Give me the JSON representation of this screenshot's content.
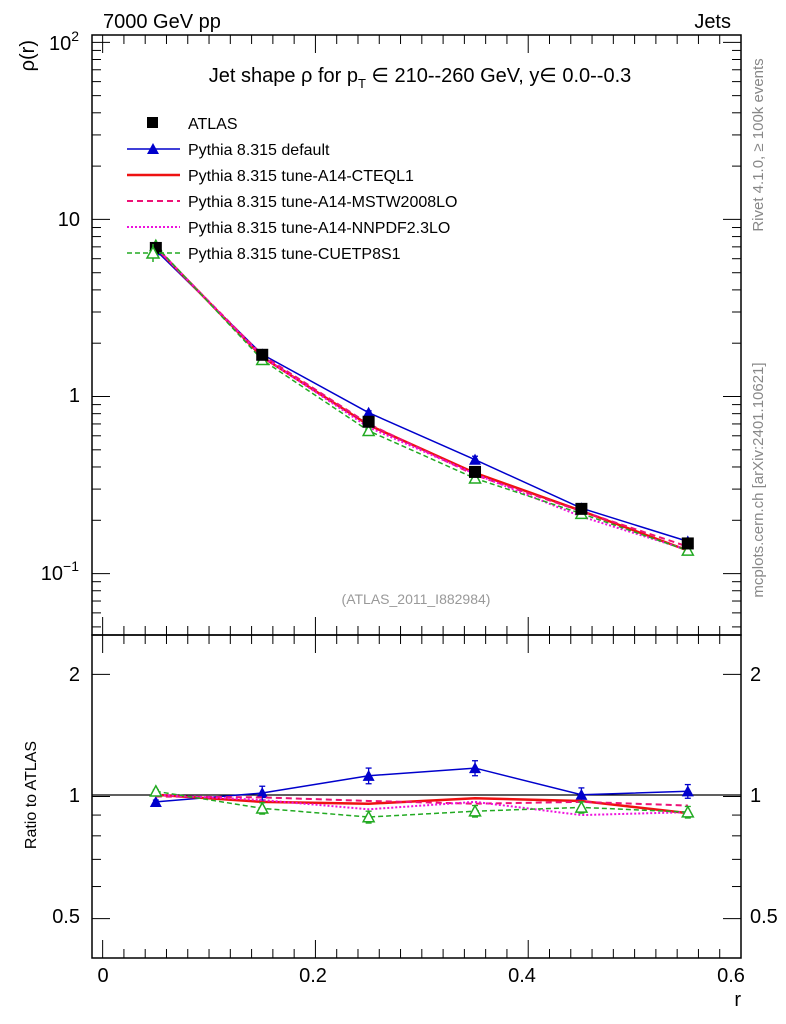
{
  "header": {
    "energy": "7000 GeV pp",
    "category": "Jets"
  },
  "side_labels": {
    "rivet": "Rivet 4.1.0, ≥ 100k events",
    "arxiv": "mcplots.cern.ch [arXiv:2401.10621]"
  },
  "chart_data": [
    {
      "type": "line",
      "panel": "main",
      "title": "Jet shape ρ for p_T ∈ 210--260 GeV, y∈ 0.0--0.3",
      "title_parts": {
        "pre": "Jet shape ρ for p",
        "sub": "T",
        "post": " ∈ 210--260 GeV, y∈ 0.0--0.3"
      },
      "ylabel": "ρ(r)",
      "yscale": "log",
      "ylim": [
        0.045,
        110
      ],
      "xlim": [
        -0.01,
        0.6
      ],
      "yticks": [
        {
          "value": 100,
          "label": "10",
          "exp": "2"
        },
        {
          "value": 10,
          "label": "10"
        },
        {
          "value": 1,
          "label": "1"
        },
        {
          "value": 0.1,
          "label": "10",
          "exp": "−1"
        }
      ],
      "analysis_label": "(ATLAS_2011_I882984)",
      "x": [
        0.05,
        0.15,
        0.25,
        0.35,
        0.45,
        0.55
      ],
      "series": [
        {
          "name": "ATLAS",
          "style": "data",
          "color": "#000000",
          "values": [
            6.9,
            1.72,
            0.72,
            0.375,
            0.232,
            0.148
          ],
          "errors": [
            0.18,
            0.05,
            0.03,
            0.015,
            0.01,
            0.007
          ]
        },
        {
          "name": "Pythia 8.315 default",
          "style": "solid-triangle",
          "color": "#0000cc",
          "values": [
            6.7,
            1.73,
            0.81,
            0.44,
            0.234,
            0.152
          ],
          "errors": [
            0.04,
            0.03,
            0.02,
            0.02,
            0.01,
            0.006
          ]
        },
        {
          "name": "Pythia 8.315 tune-A14-CTEQL1",
          "style": "solid",
          "color": "#ee1111",
          "values": [
            6.95,
            1.67,
            0.69,
            0.37,
            0.226,
            0.135
          ]
        },
        {
          "name": "Pythia 8.315 tune-A14-MSTW2008LO",
          "style": "dashed",
          "color": "#ee1177",
          "values": [
            6.9,
            1.71,
            0.7,
            0.36,
            0.225,
            0.142
          ]
        },
        {
          "name": "Pythia 8.315 tune-A14-NNPDF2.3LO",
          "style": "dotted",
          "color": "#ee11dd",
          "values": [
            6.95,
            1.68,
            0.67,
            0.365,
            0.21,
            0.136
          ]
        },
        {
          "name": "Pythia 8.315 tune-CUETP8S1",
          "style": "dashed-open-triangle",
          "color": "#22aa22",
          "values": [
            7.1,
            1.61,
            0.64,
            0.345,
            0.218,
            0.135
          ],
          "errors": [
            0.1,
            0.04,
            0.02,
            0.012,
            0.008,
            0.005
          ]
        }
      ]
    },
    {
      "type": "line",
      "panel": "ratio",
      "ylabel": "Ratio to ATLAS",
      "xlabel": "r",
      "yscale": "log",
      "ylim": [
        0.4,
        2.5
      ],
      "xlim": [
        -0.01,
        0.6
      ],
      "xticks": [
        0,
        0.2,
        0.4,
        0.6
      ],
      "xtick_labels": [
        "0",
        "0.2",
        "0.4",
        "0.6"
      ],
      "yticks": [
        0.5,
        1,
        2
      ],
      "ytick_labels": [
        "0.5",
        "1",
        "2"
      ],
      "x": [
        0.05,
        0.15,
        0.25,
        0.35,
        0.45,
        0.55
      ],
      "series": [
        {
          "name": "Pythia 8.315 default",
          "style": "solid-triangle",
          "color": "#0000cc",
          "values": [
            0.97,
            1.02,
            1.125,
            1.175,
            1.01,
            1.03
          ],
          "errors": [
            0.01,
            0.04,
            0.05,
            0.05,
            0.04,
            0.04
          ]
        },
        {
          "name": "Pythia 8.315 tune-A14-CTEQL1",
          "style": "solid",
          "color": "#ee1111",
          "values": [
            1.01,
            0.97,
            0.96,
            0.99,
            0.975,
            0.91
          ]
        },
        {
          "name": "Pythia 8.315 tune-A14-MSTW2008LO",
          "style": "dashed",
          "color": "#ee1177",
          "values": [
            1.0,
            0.995,
            0.975,
            0.96,
            0.97,
            0.95
          ]
        },
        {
          "name": "Pythia 8.315 tune-A14-NNPDF2.3LO",
          "style": "dotted",
          "color": "#ee11dd",
          "values": [
            1.01,
            0.98,
            0.93,
            0.97,
            0.9,
            0.915
          ]
        },
        {
          "name": "Pythia 8.315 tune-CUETP8S1",
          "style": "dashed-open-triangle",
          "color": "#22aa22",
          "values": [
            1.03,
            0.935,
            0.89,
            0.92,
            0.94,
            0.915
          ],
          "errors": [
            0.01,
            0.03,
            0.03,
            0.03,
            0.03,
            0.03
          ]
        }
      ]
    }
  ]
}
